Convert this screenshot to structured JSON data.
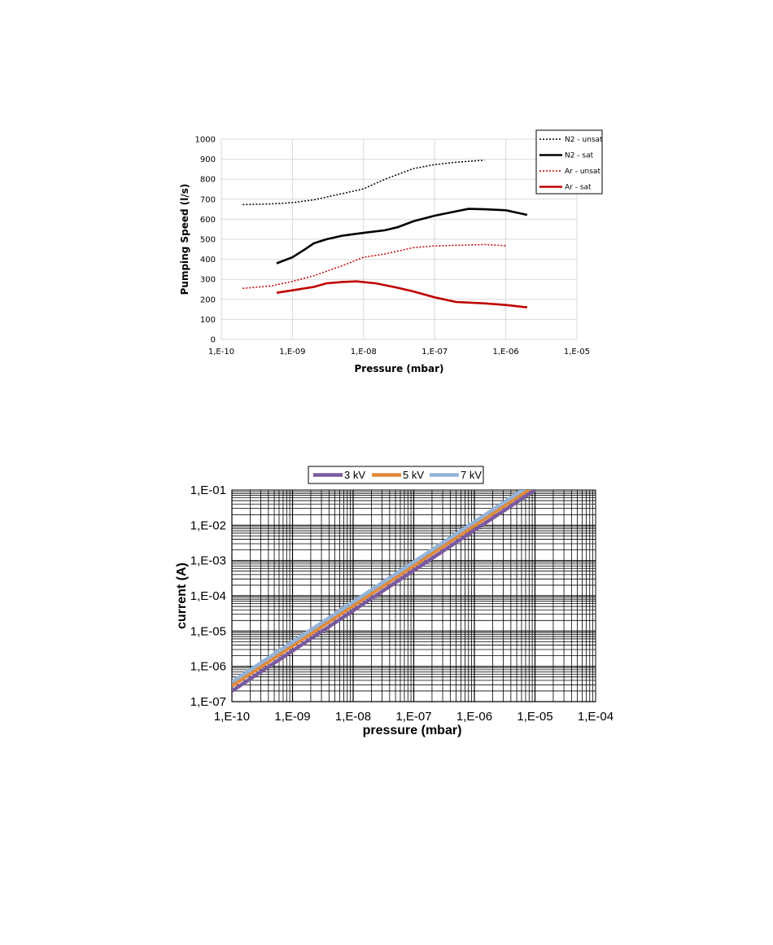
{
  "chart_data": [
    {
      "type": "line",
      "xscale": "log",
      "xlim": [
        1e-10,
        1e-05
      ],
      "ylim": [
        0,
        1000
      ],
      "x_ticks": [
        "1,E-10",
        "1,E-09",
        "1,E-08",
        "1,E-07",
        "1,E-06",
        "1,E-05"
      ],
      "y_ticks": [
        "0",
        "100",
        "200",
        "300",
        "400",
        "500",
        "600",
        "700",
        "800",
        "900",
        "1000"
      ],
      "xlabel": "Pressure (mbar)",
      "ylabel": "Pumping Speed (l/s)",
      "grid": true,
      "legend_position": "top-right",
      "series": [
        {
          "name": "N2 - unsat",
          "color": "#000000",
          "style": "dotted",
          "points": [
            [
              2e-10,
              673
            ],
            [
              5e-10,
              677
            ],
            [
              1e-09,
              683
            ],
            [
              2e-09,
              697
            ],
            [
              5e-09,
              728
            ],
            [
              1e-08,
              752
            ],
            [
              2e-08,
              800
            ],
            [
              5e-08,
              853
            ],
            [
              1e-07,
              873
            ],
            [
              2e-07,
              885
            ],
            [
              5e-07,
              895
            ]
          ]
        },
        {
          "name": "N2 - sat",
          "color": "#000000",
          "style": "solid",
          "points": [
            [
              6e-10,
              380
            ],
            [
              1e-09,
              410
            ],
            [
              1.5e-09,
              450
            ],
            [
              2e-09,
              480
            ],
            [
              3e-09,
              500
            ],
            [
              5e-09,
              518
            ],
            [
              1e-08,
              532
            ],
            [
              2e-08,
              545
            ],
            [
              3e-08,
              560
            ],
            [
              5e-08,
              590
            ],
            [
              1e-07,
              618
            ],
            [
              2e-07,
              640
            ],
            [
              3e-07,
              652
            ],
            [
              5e-07,
              650
            ],
            [
              1e-06,
              645
            ],
            [
              2e-06,
              622
            ]
          ]
        },
        {
          "name": "Ar - unsat",
          "color": "#c00000",
          "style": "dotted",
          "points": [
            [
              2e-10,
              255
            ],
            [
              5e-10,
              267
            ],
            [
              1e-09,
              290
            ],
            [
              2e-09,
              318
            ],
            [
              5e-09,
              368
            ],
            [
              1e-08,
              410
            ],
            [
              2e-08,
              427
            ],
            [
              5e-08,
              458
            ],
            [
              1e-07,
              467
            ],
            [
              2e-07,
              470
            ],
            [
              5e-07,
              474
            ],
            [
              1e-06,
              468
            ]
          ]
        },
        {
          "name": "Ar - sat",
          "color": "#c00000",
          "style": "solid",
          "points": [
            [
              6e-10,
              233
            ],
            [
              1e-09,
              245
            ],
            [
              2e-09,
              262
            ],
            [
              3e-09,
              280
            ],
            [
              5e-09,
              287
            ],
            [
              8e-09,
              290
            ],
            [
              1.5e-08,
              280
            ],
            [
              3e-08,
              258
            ],
            [
              5e-08,
              240
            ],
            [
              1e-07,
              210
            ],
            [
              2e-07,
              187
            ],
            [
              5e-07,
              180
            ],
            [
              1e-06,
              172
            ],
            [
              2e-06,
              160
            ]
          ]
        }
      ]
    },
    {
      "type": "line",
      "xscale": "log",
      "yscale": "log",
      "xlim": [
        1e-10,
        0.0001
      ],
      "ylim": [
        1e-07,
        0.1
      ],
      "x_ticks": [
        "1,E-10",
        "1,E-09",
        "1,E-08",
        "1,E-07",
        "1,E-06",
        "1,E-05",
        "1,E-04"
      ],
      "y_ticks": [
        "1,E-07",
        "1,E-06",
        "1,E-05",
        "1,E-04",
        "1,E-03",
        "1,E-02",
        "1,E-01"
      ],
      "xlabel": "pressure (mbar)",
      "ylabel": "current (A)",
      "grid": true,
      "legend_position": "top",
      "series": [
        {
          "name": "3 kV",
          "color": "#7a5a9e",
          "points": [
            [
              1e-10,
              2e-07
            ],
            [
              1e-05,
              0.1
            ]
          ]
        },
        {
          "name": "5 kV",
          "color": "#e08a3c",
          "points": [
            [
              1e-10,
              2.8e-07
            ],
            [
              1e-05,
              0.135
            ]
          ]
        },
        {
          "name": "7 kV",
          "color": "#94b3d6",
          "points": [
            [
              1e-10,
              3.6e-07
            ],
            [
              1e-05,
              0.17
            ]
          ]
        }
      ]
    }
  ]
}
